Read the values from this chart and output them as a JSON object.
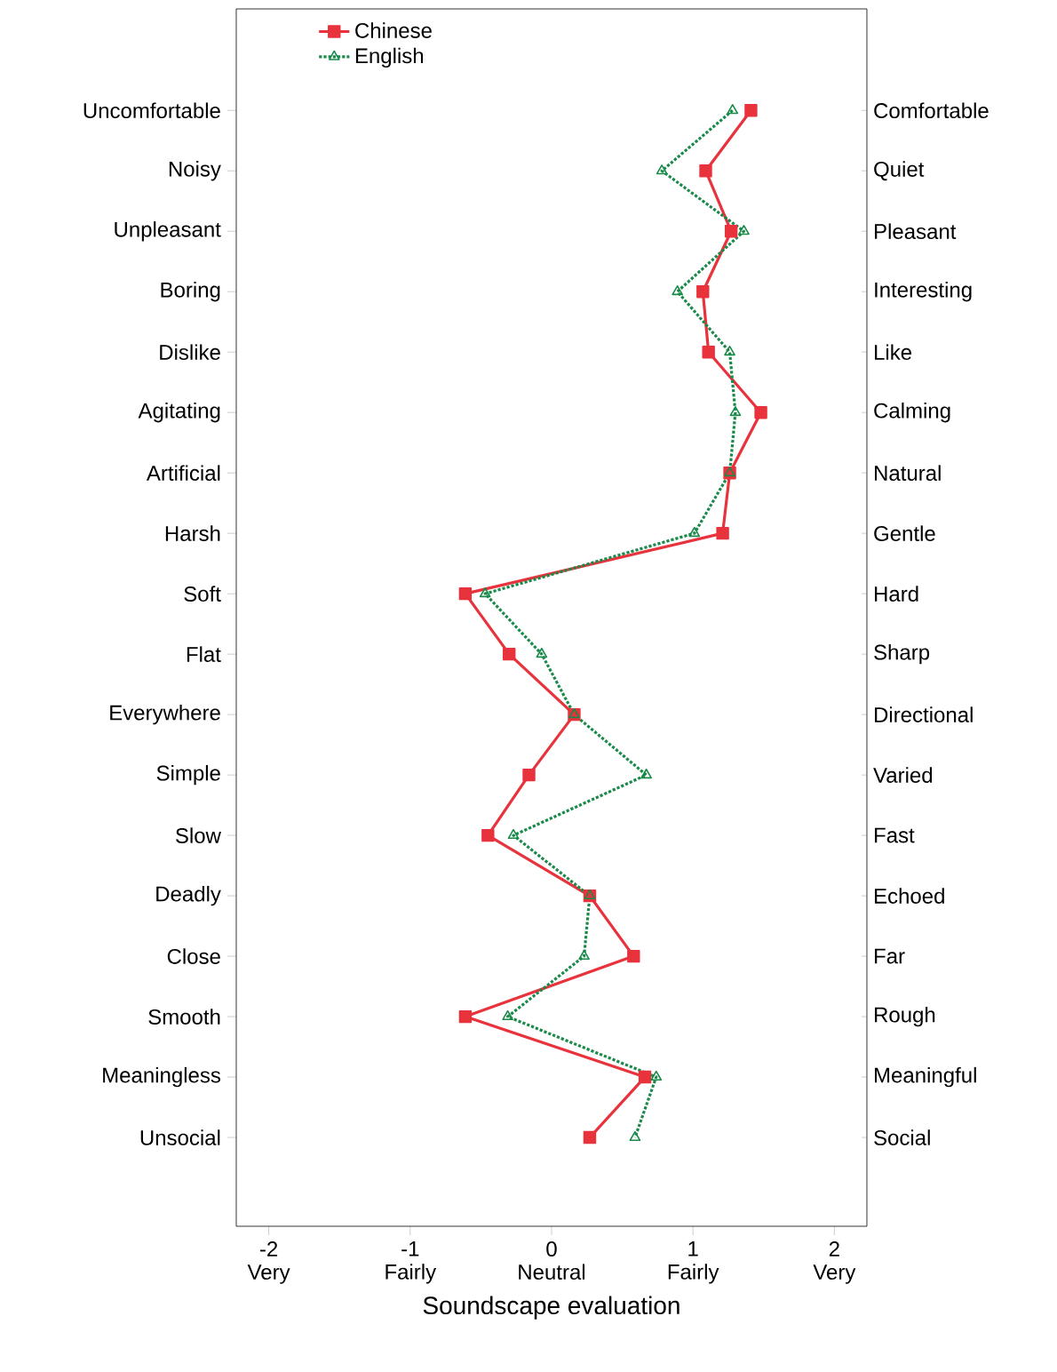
{
  "chart_data": {
    "type": "line",
    "orientation": "horizontal",
    "xlabel": "Soundscape evaluation",
    "categories": [
      "Uncomfortable",
      "Noisy",
      "Unpleasant",
      "Boring",
      "Dislike",
      "Agitating",
      "Artificial",
      "Harsh",
      "Soft",
      "Flat",
      "Everywhere",
      "Simple",
      "Slow",
      "Deadly",
      "Close",
      "Smooth",
      "Meaningless",
      "Unsocial"
    ],
    "y2_categories": [
      "Comfortable",
      "Quiet",
      "Pleasant",
      "Interesting",
      "Like",
      "Calming",
      "Natural",
      "Gentle",
      "Hard",
      "Sharp",
      "Directional",
      "Varied",
      "Fast",
      "Echoed",
      "Far",
      "Rough",
      "Meaningful",
      "Social"
    ],
    "series": [
      {
        "name": "Chinese",
        "color": "#e8323c",
        "marker": "square",
        "line_style": "solid",
        "values": [
          1.41,
          1.09,
          1.27,
          1.07,
          1.11,
          1.48,
          1.26,
          1.21,
          -0.61,
          -0.3,
          0.16,
          -0.16,
          -0.45,
          0.27,
          0.58,
          -0.61,
          0.66,
          0.27
        ]
      },
      {
        "name": "English",
        "color": "#1a8a4a",
        "marker": "triangle",
        "line_style": "dotted",
        "values": [
          1.28,
          0.78,
          1.36,
          0.89,
          1.26,
          1.3,
          1.26,
          1.01,
          -0.47,
          -0.07,
          0.16,
          0.67,
          -0.27,
          0.27,
          0.23,
          -0.31,
          0.74,
          0.59
        ]
      }
    ],
    "xlim": [
      -2.23,
      2.23
    ],
    "xticks": [
      {
        "value": -2,
        "label": "-2\nVery"
      },
      {
        "value": -1,
        "label": "-1\nFairly"
      },
      {
        "value": 0,
        "label": "0\nNeutral"
      },
      {
        "value": 1,
        "label": "1\nFairly"
      },
      {
        "value": 2,
        "label": "2\nVery"
      }
    ],
    "grid": false,
    "legend": "top left"
  }
}
